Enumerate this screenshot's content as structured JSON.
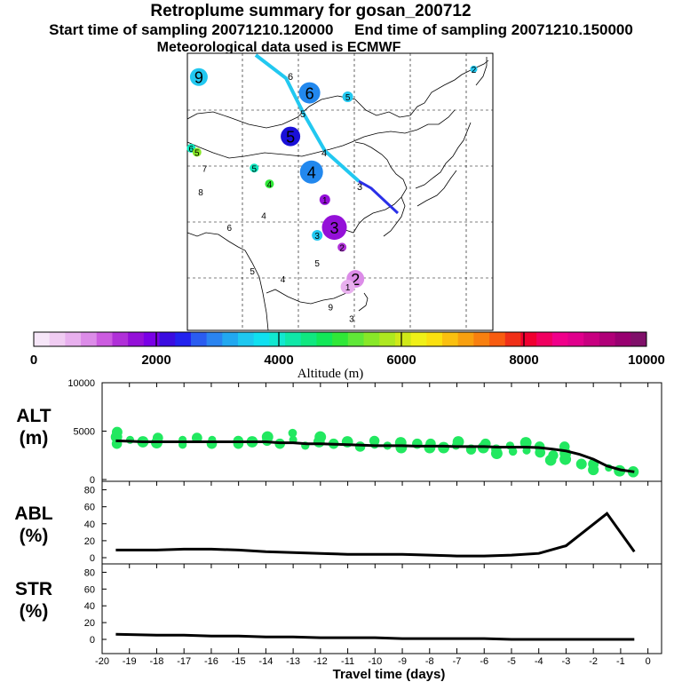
{
  "header": {
    "title": "Retroplume summary for gosan_200712",
    "start_label": "Start time of sampling 20071210.120000",
    "end_label": "End time of sampling 20071210.150000",
    "met_label": "Meteorological data used is ECMWF"
  },
  "colorbar": {
    "label": "Altitude (m)",
    "ticks": [
      "0",
      "2000",
      "4000",
      "6000",
      "8000",
      "10000"
    ],
    "colors": [
      "#f6e6f8",
      "#f0ccf2",
      "#e8b0ee",
      "#dc8ce8",
      "#cc5ce0",
      "#b030d8",
      "#9410d8",
      "#7a00e6",
      "#3a0ce0",
      "#2222ee",
      "#2a5cf0",
      "#2a84f0",
      "#22a8f0",
      "#1ec8f0",
      "#10e0f0",
      "#12e8d0",
      "#10e8a8",
      "#10e880",
      "#12e858",
      "#30e838",
      "#60e838",
      "#88e828",
      "#aee820",
      "#d0e818",
      "#f0f018",
      "#fae010",
      "#fac010",
      "#f8a010",
      "#f88010",
      "#f85c10",
      "#f03018",
      "#f00030",
      "#f00060",
      "#f0008a",
      "#e0008c",
      "#c80080",
      "#b00078",
      "#980070",
      "#80106a"
    ]
  },
  "map": {
    "labels": [
      {
        "t": "9",
        "lon": 73.0,
        "lat": 52.0,
        "r": 10,
        "c": "#22c8f0"
      },
      {
        "t": "6",
        "lon": 102.0,
        "lat": 50.0,
        "r": 12,
        "c": "#2288ee"
      },
      {
        "t": "5",
        "lon": 112.0,
        "lat": 49.5,
        "r": 6,
        "c": "#22c8f0"
      },
      {
        "t": "2",
        "lon": 145.0,
        "lat": 53.0,
        "r": 4,
        "c": "#22c8f0"
      },
      {
        "t": "5",
        "lon": 97.0,
        "lat": 44.5,
        "r": 11,
        "c": "#1a10d8"
      },
      {
        "t": "4",
        "lon": 102.5,
        "lat": 40.0,
        "r": 13,
        "c": "#2288ee"
      },
      {
        "t": "6",
        "lon": 71.0,
        "lat": 43.0,
        "r": 5,
        "c": "#10e8c0"
      },
      {
        "t": "5",
        "lon": 72.5,
        "lat": 42.5,
        "r": 5,
        "c": "#88e828"
      },
      {
        "t": "7",
        "lon": 74.5,
        "lat": 40.5,
        "r": 0,
        "c": "#000"
      },
      {
        "t": "5",
        "lon": 87.5,
        "lat": 40.5,
        "r": 5,
        "c": "#10e8c0"
      },
      {
        "t": "4",
        "lon": 91.5,
        "lat": 38.5,
        "r": 5,
        "c": "#30e838"
      },
      {
        "t": "8",
        "lon": 73.5,
        "lat": 37.5,
        "r": 0,
        "c": "#000"
      },
      {
        "t": "4",
        "lon": 90.0,
        "lat": 34.5,
        "r": 0,
        "c": "#000"
      },
      {
        "t": "6",
        "lon": 81.0,
        "lat": 33.0,
        "r": 0,
        "c": "#000"
      },
      {
        "t": "1",
        "lon": 106.0,
        "lat": 36.5,
        "r": 6,
        "c": "#9410d8"
      },
      {
        "t": "3",
        "lon": 108.5,
        "lat": 33.0,
        "r": 14,
        "c": "#9410d8"
      },
      {
        "t": "3",
        "lon": 104.0,
        "lat": 32.0,
        "r": 6,
        "c": "#22c8f0"
      },
      {
        "t": "2",
        "lon": 110.5,
        "lat": 30.5,
        "r": 5,
        "c": "#b030d8"
      },
      {
        "t": "5",
        "lon": 104.0,
        "lat": 28.5,
        "r": 0,
        "c": "#000"
      },
      {
        "t": "5",
        "lon": 87.0,
        "lat": 27.5,
        "r": 0,
        "c": "#000"
      },
      {
        "t": "4",
        "lon": 95.0,
        "lat": 26.5,
        "r": 0,
        "c": "#000"
      },
      {
        "t": "2",
        "lon": 114.0,
        "lat": 26.5,
        "r": 10,
        "c": "#dc8ce8"
      },
      {
        "t": "1",
        "lon": 112.0,
        "lat": 25.5,
        "r": 8,
        "c": "#e8b0ee"
      },
      {
        "t": "9",
        "lon": 107.5,
        "lat": 23.0,
        "r": 0,
        "c": "#000"
      },
      {
        "t": "3",
        "lon": 113.0,
        "lat": 21.5,
        "r": 0,
        "c": "#000"
      }
    ]
  },
  "chart_data": [
    {
      "type": "scatter",
      "name": "ALT",
      "ylabel": "ALT (m)",
      "ylim": [
        0,
        10000
      ],
      "yticks": [
        "0",
        "5000",
        "10000"
      ],
      "x": [
        -19.5,
        -19,
        -18.5,
        -18,
        -17.5,
        -17,
        -16.5,
        -16,
        -15.5,
        -15,
        -14.5,
        -14,
        -13.5,
        -13,
        -12.5,
        -12,
        -11.5,
        -11,
        -10.5,
        -10,
        -9.5,
        -9,
        -8.5,
        -8,
        -7.5,
        -7,
        -6.5,
        -6,
        -5.5,
        -5,
        -4.5,
        -4,
        -3.5,
        -3,
        -2.5,
        -2,
        -1.5,
        -1,
        -0.5
      ],
      "median_line": [
        4000,
        3950,
        3900,
        3900,
        3900,
        3900,
        3900,
        3900,
        3900,
        3900,
        3900,
        3900,
        3800,
        3800,
        3700,
        3700,
        3650,
        3600,
        3550,
        3500,
        3500,
        3500,
        3450,
        3450,
        3450,
        3400,
        3400,
        3400,
        3350,
        3350,
        3350,
        3300,
        3150,
        2950,
        2600,
        2100,
        1400,
        1000,
        800
      ],
      "points": [
        [
          -19.5,
          4400
        ],
        [
          -19.5,
          3700
        ],
        [
          -19.5,
          4900
        ],
        [
          -19,
          4100
        ],
        [
          -18.5,
          3900
        ],
        [
          -18,
          4300
        ],
        [
          -18,
          3800
        ],
        [
          -17,
          4100
        ],
        [
          -17,
          3600
        ],
        [
          -16.5,
          4300
        ],
        [
          -16,
          3700
        ],
        [
          -16,
          4100
        ],
        [
          -15,
          4000
        ],
        [
          -15,
          3700
        ],
        [
          -14.5,
          3900
        ],
        [
          -14,
          4000
        ],
        [
          -14,
          4400
        ],
        [
          -13.5,
          3700
        ],
        [
          -13,
          4100
        ],
        [
          -13,
          4800
        ],
        [
          -12.5,
          3500
        ],
        [
          -12,
          3900
        ],
        [
          -12,
          4400
        ],
        [
          -11.5,
          3700
        ],
        [
          -11,
          3900
        ],
        [
          -10.5,
          3400
        ],
        [
          -10,
          3600
        ],
        [
          -10,
          4000
        ],
        [
          -9.5,
          3500
        ],
        [
          -9,
          3300
        ],
        [
          -9,
          3800
        ],
        [
          -8.5,
          3700
        ],
        [
          -8,
          3300
        ],
        [
          -8,
          3700
        ],
        [
          -7.5,
          3300
        ],
        [
          -7,
          3500
        ],
        [
          -7,
          3900
        ],
        [
          -6.5,
          3100
        ],
        [
          -6,
          3300
        ],
        [
          -6,
          3700
        ],
        [
          -5.5,
          3100
        ],
        [
          -5.5,
          2700
        ],
        [
          -5,
          2900
        ],
        [
          -5,
          3500
        ],
        [
          -4.5,
          3000
        ],
        [
          -4.5,
          3800
        ],
        [
          -4,
          2800
        ],
        [
          -4,
          3400
        ],
        [
          -3.5,
          2000
        ],
        [
          -3.5,
          2500
        ],
        [
          -3,
          2100
        ],
        [
          -3,
          2700
        ],
        [
          -3,
          3400
        ],
        [
          -2.5,
          1600
        ],
        [
          -2,
          1600
        ],
        [
          -2,
          1000
        ],
        [
          -1.5,
          1200
        ],
        [
          -1,
          900
        ],
        [
          -0.5,
          800
        ]
      ]
    },
    {
      "type": "line",
      "name": "ABL",
      "ylabel": "ABL (%)",
      "ylim": [
        0,
        90
      ],
      "yticks": [
        "0",
        "20",
        "40",
        "60",
        "80"
      ],
      "x": [
        -19.5,
        -18,
        -17,
        -16,
        -15,
        -14,
        -13,
        -12,
        -11,
        -10,
        -9,
        -8,
        -7,
        -6,
        -5,
        -4,
        -3,
        -1.5,
        -0.5
      ],
      "values": [
        9,
        9,
        10,
        10,
        9,
        7,
        6,
        5,
        4,
        4,
        4,
        3,
        2,
        2,
        3,
        5,
        14,
        52,
        7
      ]
    },
    {
      "type": "line",
      "name": "STR",
      "ylabel": "STR (%)",
      "ylim": [
        0,
        90
      ],
      "yticks": [
        "0",
        "20",
        "40",
        "60",
        "80"
      ],
      "x": [
        -19.5,
        -18,
        -17,
        -16,
        -15,
        -14,
        -13,
        -12,
        -11,
        -10,
        -9,
        -8,
        -7,
        -6,
        -5,
        -4,
        -3,
        -1.5,
        -0.5
      ],
      "values": [
        6,
        5,
        5,
        4,
        4,
        3,
        3,
        2,
        2,
        2,
        1,
        1,
        1,
        1,
        0,
        0,
        0,
        0,
        0
      ]
    }
  ],
  "xaxis": {
    "label": "Travel time (days)",
    "ticks": [
      "-20",
      "-19",
      "-18",
      "-17",
      "-16",
      "-15",
      "-14",
      "-13",
      "-12",
      "-11",
      "-10",
      "-9",
      "-8",
      "-7",
      "-6",
      "-5",
      "-4",
      "-3",
      "-2",
      "-1",
      "0"
    ],
    "min": -20,
    "max": 0.5
  },
  "panel_labels": {
    "alt": [
      "ALT",
      "(m)"
    ],
    "abl": [
      "ABL",
      "(%)"
    ],
    "str": [
      "STR",
      "(%)"
    ]
  }
}
